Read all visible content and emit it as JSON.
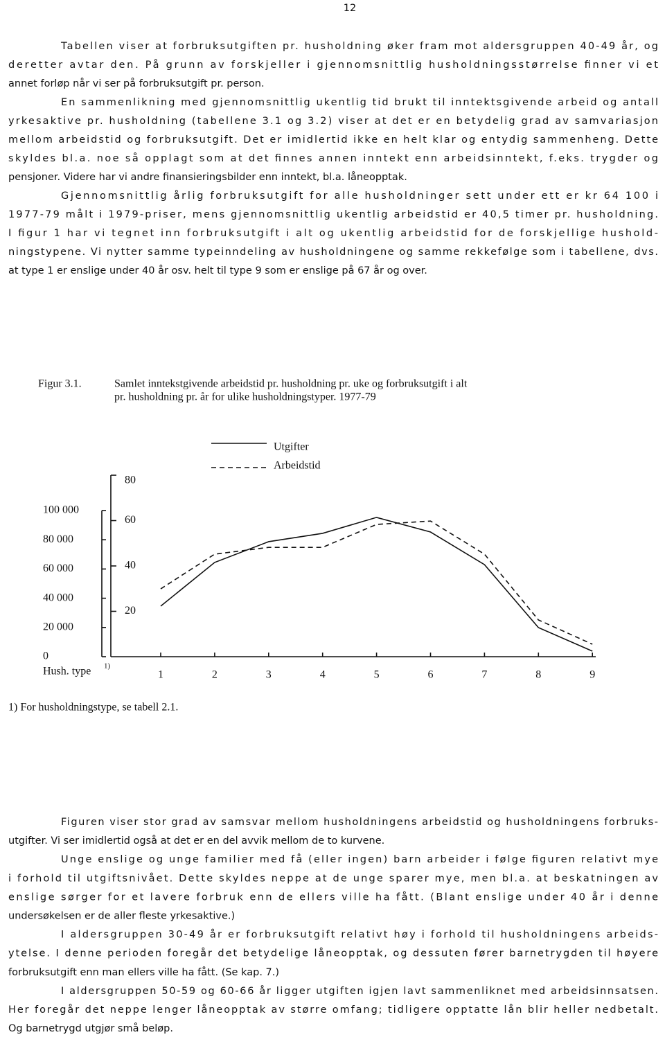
{
  "page_number": "12",
  "text_top": {
    "paragraphs": [
      [
        "Tabellen viser at forbruksutgiften pr. husholdning øker fram mot aldersgruppen 40-49 år, og",
        "deretter avtar den. På grunn av forskjeller i gjennomsnittlig husholdningsstørrelse finner vi et",
        "annet forløp når vi ser på forbruksutgift pr. person."
      ],
      [
        "En sammenlikning med gjennomsnittlig ukentlig tid brukt til inntektsgivende arbeid og antall",
        "yrkesaktive pr. husholdning (tabellene 3.1 og 3.2) viser at det er en betydelig grad av samvariasjon",
        "mellom arbeidstid og forbruksutgift. Det er imidlertid ikke en helt klar og entydig sammenheng. Dette",
        "skyldes bl.a. noe så opplagt som at det finnes annen inntekt enn arbeidsinntekt, f.eks. trygder og",
        "pensjoner. Videre har vi andre finansieringsbilder enn inntekt, bl.a. låneopptak."
      ],
      [
        "Gjennomsnittlig årlig forbruksutgift for alle husholdninger sett under ett er kr 64 100 i",
        "1977-79 målt i 1979-priser, mens gjennomsnittlig ukentlig arbeidstid er 40,5 timer pr. husholdning.",
        "I figur 1 har vi tegnet inn forbruksutgift i alt og ukentlig arbeidstid for de forskjellige hushold-",
        "ningstypene. Vi nytter samme typeinndeling av husholdningene og samme rekkefølge som i tabellene, dvs.",
        "at type 1 er enslige under 40 år osv. helt til type 9 som er enslige på 67 år og over."
      ]
    ]
  },
  "figure": {
    "label": "Figur 3.1.",
    "caption": [
      "Samlet inntekstgivende arbeidstid pr. husholdning pr. uke og forbruksutgift i alt",
      "pr. husholdning pr. år for ulike husholdningstyper. 1977-79"
    ],
    "footnote": "1) For husholdningstype, se tabell 2.1.",
    "chart_data": {
      "type": "line",
      "x_label": "Hush. type",
      "x_label_note": "1)",
      "categories": [
        "1",
        "2",
        "3",
        "4",
        "5",
        "6",
        "7",
        "8",
        "9"
      ],
      "ylim": [
        0,
        100000
      ],
      "yticks": [
        0,
        {
          "value": 20000,
          "label": "20 000"
        },
        {
          "value": 40000,
          "label": "40 000"
        },
        {
          "value": 60000,
          "label": "60 000"
        },
        {
          "value": 80000,
          "label": "80 000"
        },
        {
          "value": 100000,
          "label": "100 000"
        }
      ],
      "y2lim": [
        0,
        80
      ],
      "y2ticks": [
        20,
        40,
        60,
        80
      ],
      "series": [
        {
          "name": "Utgifter",
          "color": "#111111",
          "dash": false,
          "values": [
            34600,
            64500,
            78700,
            84400,
            95300,
            85300,
            63000,
            19900,
            3800
          ]
        },
        {
          "name": "Arbeidstid",
          "color": "#111111",
          "dash": true,
          "axis": "y2",
          "values": [
            29.9,
            45.2,
            48.2,
            48.2,
            58.3,
            59.8,
            45.2,
            16.2,
            5.5
          ]
        }
      ]
    }
  },
  "text_bottom": {
    "paragraphs": [
      [
        "Figuren viser stor grad av samsvar mellom husholdningens arbeidstid og husholdningens forbruks-",
        "utgifter. Vi ser imidlertid også at det er en del avvik mellom de to kurvene."
      ],
      [
        "Unge enslige og unge familier med få (eller ingen) barn arbeider i følge figuren relativt mye",
        "i forhold til utgiftsnivået. Dette skyldes neppe at de unge sparer mye, men bl.a. at beskatningen av",
        "enslige sørger for et lavere forbruk enn de ellers ville ha fått. (Blant enslige under 40 år i denne",
        "undersøkelsen er de aller fleste yrkesaktive.)"
      ],
      [
        "I aldersgruppen 30-49 år er forbruksutgift relativt høy i forhold til husholdningens arbeids-",
        "ytelse. I denne perioden foregår det betydelige låneopptak, og dessuten fører barnetrygden til høyere",
        "forbruksutgift enn man ellers ville ha fått. (Se kap. 7.)"
      ],
      [
        "I aldersgruppen 50-59 og 60-66 år ligger utgiften igjen lavt sammenliknet med arbeidsinnsatsen.",
        "Her foregår det neppe lenger låneopptak av større omfang; tidligere opptatte lån blir heller nedbetalt.",
        "Og barnetrygd utgjør små beløp."
      ]
    ]
  }
}
